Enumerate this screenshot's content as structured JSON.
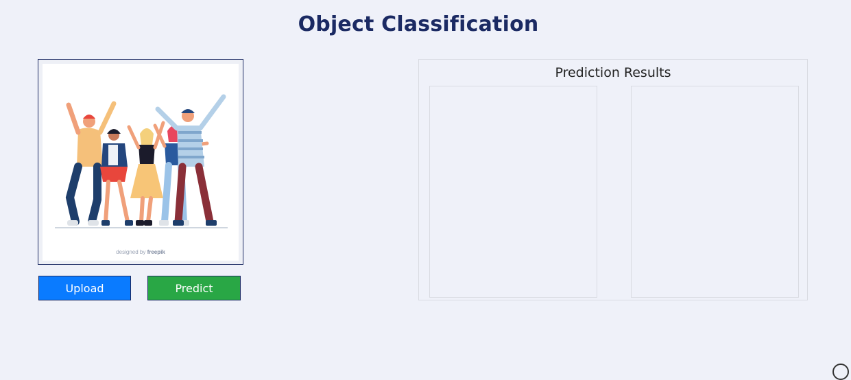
{
  "header": {
    "title": "Object Classification"
  },
  "image_preview": {
    "alt": "Illustration of a group of cheering friends",
    "watermark_prefix": "designed by",
    "watermark_brand": "freepik"
  },
  "buttons": {
    "upload_label": "Upload",
    "predict_label": "Predict"
  },
  "results": {
    "title": "Prediction Results"
  },
  "colors": {
    "background": "#eff1f9",
    "title": "#1b2a63",
    "upload_button": "#0a7bff",
    "predict_button": "#29a745"
  }
}
